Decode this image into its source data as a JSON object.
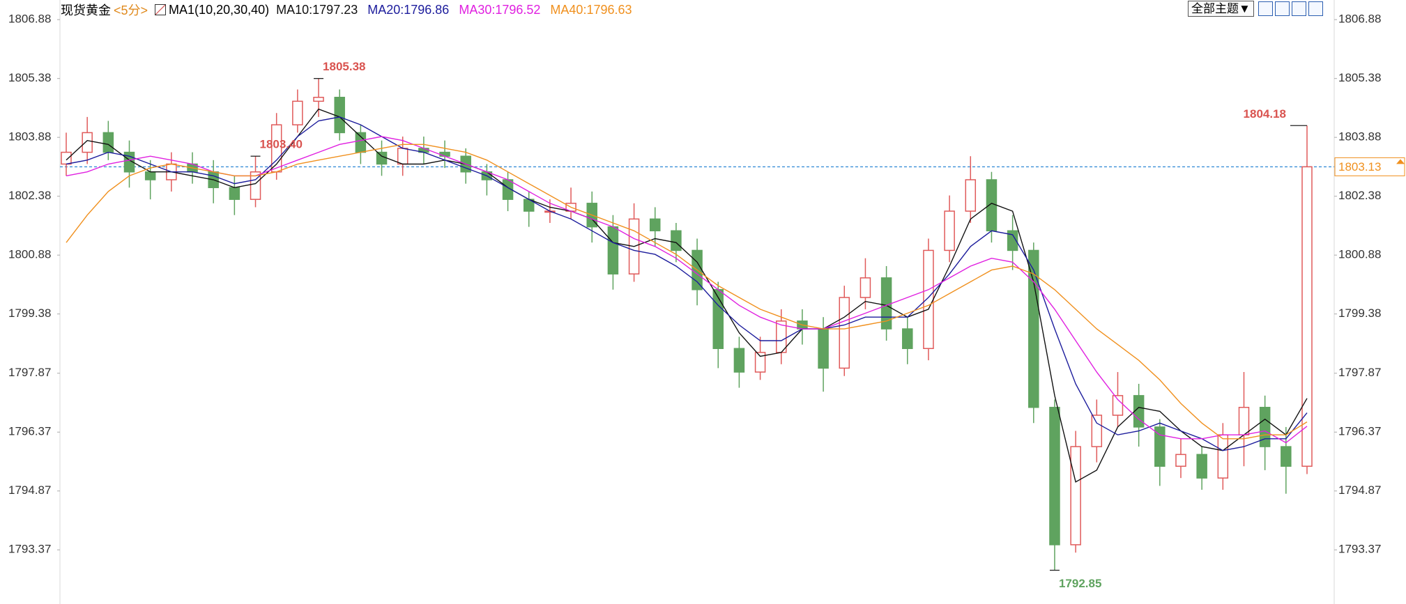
{
  "chart_data": {
    "type": "candlestick",
    "title": "现货黄金",
    "period": "<5分>",
    "indicator": "MA1(10,20,30,40)",
    "toolbar_button": "全部主题▼",
    "ylim": [
      1791.99,
      1807.38
    ],
    "yticks": [
      1806.88,
      1805.38,
      1803.88,
      1802.38,
      1800.88,
      1799.38,
      1797.87,
      1796.37,
      1794.87,
      1793.37
    ],
    "up_color": "#e05a5a",
    "down_color": "#5fa35f",
    "open": [
      1803.2,
      1803.5,
      1804.0,
      1803.5,
      1803.0,
      1802.8,
      1803.2,
      1803.0,
      1802.6,
      1802.3,
      1803.0,
      1804.2,
      1804.8,
      1804.9,
      1804.0,
      1803.5,
      1803.2,
      1803.6,
      1803.5,
      1803.4,
      1803.0,
      1802.8,
      1802.3,
      1802.0,
      1802.0,
      1802.2,
      1801.6,
      1800.4,
      1801.8,
      1801.5,
      1801.0,
      1800.0,
      1798.5,
      1797.9,
      1798.4,
      1799.2,
      1799.0,
      1798.0,
      1799.8,
      1800.3,
      1799.0,
      1798.5,
      1801.0,
      1802.0,
      1802.8,
      1801.5,
      1801.0,
      1797.0,
      1793.5,
      1796.0,
      1796.8,
      1797.3,
      1796.5,
      1795.5,
      1795.8,
      1795.2,
      1796.3,
      1797.0,
      1796.0,
      1795.5
    ],
    "high": [
      1804.0,
      1804.4,
      1804.3,
      1803.8,
      1803.3,
      1803.5,
      1803.5,
      1803.3,
      1802.9,
      1803.4,
      1804.5,
      1805.1,
      1805.38,
      1805.1,
      1804.2,
      1803.8,
      1803.9,
      1803.9,
      1803.8,
      1803.6,
      1803.2,
      1803.0,
      1802.5,
      1802.3,
      1802.6,
      1802.5,
      1801.9,
      1802.2,
      1802.1,
      1801.7,
      1801.3,
      1800.2,
      1798.8,
      1798.8,
      1799.5,
      1799.5,
      1799.3,
      1800.1,
      1800.8,
      1800.6,
      1799.3,
      1801.3,
      1802.4,
      1803.4,
      1803.0,
      1801.9,
      1801.2,
      1797.2,
      1796.4,
      1797.2,
      1797.9,
      1797.6,
      1796.7,
      1796.2,
      1796.0,
      1796.6,
      1797.9,
      1797.3,
      1796.5,
      1804.18
    ],
    "low": [
      1802.9,
      1803.2,
      1803.3,
      1802.6,
      1802.3,
      1802.5,
      1802.7,
      1802.2,
      1801.9,
      1802.1,
      1802.8,
      1804.0,
      1804.4,
      1803.8,
      1803.2,
      1802.9,
      1802.9,
      1803.2,
      1803.1,
      1802.7,
      1802.4,
      1802.0,
      1801.6,
      1801.7,
      1801.8,
      1801.2,
      1800.0,
      1800.2,
      1801.1,
      1800.7,
      1799.6,
      1798.0,
      1797.5,
      1797.7,
      1798.1,
      1798.6,
      1797.4,
      1797.8,
      1799.5,
      1798.7,
      1798.1,
      1798.2,
      1800.7,
      1801.7,
      1801.2,
      1800.5,
      1796.6,
      1792.85,
      1793.3,
      1795.6,
      1796.5,
      1796.0,
      1795.0,
      1795.2,
      1794.9,
      1794.9,
      1795.5,
      1795.4,
      1794.8,
      1795.3
    ],
    "close": [
      1803.5,
      1804.0,
      1803.5,
      1803.0,
      1802.8,
      1803.2,
      1803.0,
      1802.6,
      1802.3,
      1803.0,
      1804.2,
      1804.8,
      1804.9,
      1804.0,
      1803.5,
      1803.2,
      1803.6,
      1803.5,
      1803.4,
      1803.0,
      1802.8,
      1802.3,
      1802.0,
      1802.0,
      1802.2,
      1801.6,
      1800.4,
      1801.8,
      1801.5,
      1801.0,
      1800.0,
      1798.5,
      1797.9,
      1798.4,
      1799.2,
      1799.0,
      1798.0,
      1799.8,
      1800.3,
      1799.0,
      1798.5,
      1801.0,
      1802.0,
      1802.8,
      1801.5,
      1801.0,
      1797.0,
      1793.5,
      1796.0,
      1796.8,
      1797.3,
      1796.5,
      1795.5,
      1795.8,
      1795.2,
      1796.3,
      1797.0,
      1796.0,
      1795.5,
      1803.13
    ],
    "series": [
      {
        "name": "MA10:1797.23",
        "color": "#111111",
        "values": [
          1803.3,
          1803.8,
          1803.7,
          1803.3,
          1803.0,
          1803.0,
          1802.9,
          1802.8,
          1802.6,
          1802.7,
          1803.2,
          1803.9,
          1804.6,
          1804.4,
          1803.9,
          1803.4,
          1803.2,
          1803.2,
          1803.3,
          1803.2,
          1803.0,
          1802.6,
          1802.3,
          1802.1,
          1802.0,
          1801.8,
          1801.2,
          1801.1,
          1801.3,
          1801.2,
          1800.7,
          1799.8,
          1798.9,
          1798.3,
          1798.4,
          1799.0,
          1799.0,
          1799.3,
          1799.7,
          1799.6,
          1799.3,
          1799.5,
          1800.6,
          1801.8,
          1802.2,
          1802.0,
          1800.2,
          1797.3,
          1795.1,
          1795.4,
          1796.5,
          1797.0,
          1796.9,
          1796.4,
          1796.0,
          1795.9,
          1796.3,
          1796.7,
          1796.3,
          1797.23
        ]
      },
      {
        "name": "MA20:1796.86",
        "color": "#1c1c9c",
        "values": [
          1803.2,
          1803.3,
          1803.5,
          1803.4,
          1803.2,
          1803.0,
          1803.0,
          1802.9,
          1802.7,
          1802.8,
          1803.3,
          1803.9,
          1804.3,
          1804.4,
          1804.2,
          1803.9,
          1803.6,
          1803.5,
          1803.3,
          1803.1,
          1802.9,
          1802.6,
          1802.3,
          1802.0,
          1801.8,
          1801.5,
          1801.2,
          1801.0,
          1800.9,
          1800.6,
          1800.2,
          1799.6,
          1799.1,
          1798.7,
          1798.7,
          1799.0,
          1799.0,
          1799.1,
          1799.3,
          1799.3,
          1799.3,
          1799.8,
          1800.4,
          1801.1,
          1801.5,
          1801.4,
          1800.5,
          1799.0,
          1797.6,
          1796.6,
          1796.3,
          1796.4,
          1796.6,
          1796.4,
          1796.2,
          1795.9,
          1796.0,
          1796.2,
          1796.2,
          1796.86
        ]
      },
      {
        "name": "MA30:1796.52",
        "color": "#e020e0",
        "values": [
          1802.9,
          1803.0,
          1803.2,
          1803.3,
          1803.4,
          1803.3,
          1803.2,
          1803.0,
          1802.9,
          1802.9,
          1803.1,
          1803.3,
          1803.5,
          1803.7,
          1803.8,
          1803.9,
          1803.8,
          1803.6,
          1803.4,
          1803.2,
          1803.0,
          1802.8,
          1802.5,
          1802.2,
          1802.0,
          1801.8,
          1801.6,
          1801.3,
          1801.1,
          1800.8,
          1800.4,
          1800.0,
          1799.6,
          1799.3,
          1799.1,
          1799.0,
          1799.0,
          1799.2,
          1799.4,
          1799.6,
          1799.8,
          1800.0,
          1800.3,
          1800.6,
          1800.8,
          1800.7,
          1800.2,
          1799.5,
          1798.7,
          1797.9,
          1797.2,
          1796.7,
          1796.3,
          1796.2,
          1796.2,
          1796.3,
          1796.3,
          1796.4,
          1796.1,
          1796.52
        ]
      },
      {
        "name": "MA40:1796.63",
        "color": "#f0901e",
        "values": [
          1801.2,
          1801.9,
          1802.5,
          1802.9,
          1803.1,
          1803.2,
          1803.1,
          1803.0,
          1802.9,
          1802.9,
          1803.0,
          1803.2,
          1803.3,
          1803.4,
          1803.5,
          1803.6,
          1803.7,
          1803.7,
          1803.6,
          1803.5,
          1803.3,
          1803.0,
          1802.7,
          1802.4,
          1802.1,
          1801.9,
          1801.7,
          1801.5,
          1801.2,
          1800.9,
          1800.5,
          1800.1,
          1799.8,
          1799.5,
          1799.3,
          1799.1,
          1799.0,
          1799.0,
          1799.1,
          1799.2,
          1799.4,
          1799.6,
          1799.9,
          1800.2,
          1800.5,
          1800.6,
          1800.4,
          1800.0,
          1799.5,
          1799.0,
          1798.6,
          1798.2,
          1797.7,
          1797.1,
          1796.6,
          1796.2,
          1796.2,
          1796.3,
          1796.3,
          1796.63
        ]
      }
    ],
    "annotations": [
      {
        "value": 1805.38,
        "label": "1805.38"
      },
      {
        "value": 1803.4,
        "label": "1803.40"
      },
      {
        "value": 1804.18,
        "label": "1804.18"
      },
      {
        "value": 1792.85,
        "label": "1792.85"
      }
    ],
    "last_price": 1803.13,
    "last_price_color": "#f0901e"
  }
}
